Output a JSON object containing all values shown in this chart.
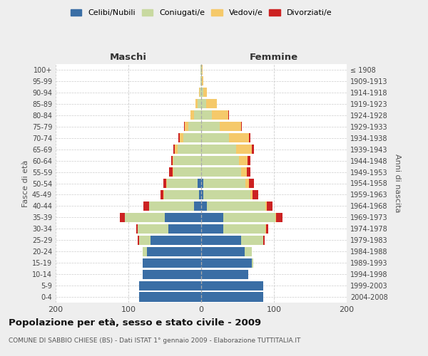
{
  "age_groups": [
    "0-4",
    "5-9",
    "10-14",
    "15-19",
    "20-24",
    "25-29",
    "30-34",
    "35-39",
    "40-44",
    "45-49",
    "50-54",
    "55-59",
    "60-64",
    "65-69",
    "70-74",
    "75-79",
    "80-84",
    "85-89",
    "90-94",
    "95-99",
    "100+"
  ],
  "birth_years": [
    "2004-2008",
    "1999-2003",
    "1994-1998",
    "1989-1993",
    "1984-1988",
    "1979-1983",
    "1974-1978",
    "1969-1973",
    "1964-1968",
    "1959-1963",
    "1954-1958",
    "1949-1953",
    "1944-1948",
    "1939-1943",
    "1934-1938",
    "1929-1933",
    "1924-1928",
    "1919-1923",
    "1914-1918",
    "1909-1913",
    "≤ 1908"
  ],
  "male": {
    "celibe": [
      85,
      85,
      80,
      80,
      75,
      70,
      45,
      50,
      10,
      3,
      5,
      0,
      0,
      0,
      0,
      0,
      0,
      0,
      0,
      0,
      0
    ],
    "coniugato": [
      0,
      0,
      0,
      0,
      5,
      15,
      42,
      55,
      62,
      48,
      42,
      38,
      38,
      32,
      25,
      18,
      10,
      5,
      2,
      1,
      1
    ],
    "vedovo": [
      0,
      0,
      0,
      0,
      0,
      0,
      0,
      0,
      0,
      1,
      1,
      1,
      1,
      4,
      4,
      5,
      5,
      3,
      1,
      0,
      0
    ],
    "divorziato": [
      0,
      0,
      0,
      0,
      0,
      2,
      2,
      7,
      7,
      4,
      4,
      5,
      2,
      2,
      2,
      1,
      0,
      0,
      0,
      0,
      0
    ]
  },
  "female": {
    "nubile": [
      85,
      85,
      65,
      70,
      60,
      55,
      30,
      30,
      8,
      3,
      3,
      0,
      0,
      0,
      0,
      0,
      0,
      0,
      0,
      0,
      0
    ],
    "coniugata": [
      0,
      0,
      0,
      2,
      10,
      30,
      58,
      72,
      80,
      65,
      58,
      55,
      52,
      48,
      38,
      25,
      15,
      7,
      3,
      1,
      1
    ],
    "vedova": [
      0,
      0,
      0,
      0,
      0,
      0,
      1,
      1,
      2,
      3,
      5,
      8,
      12,
      22,
      28,
      30,
      22,
      15,
      5,
      2,
      1
    ],
    "divorziata": [
      0,
      0,
      0,
      0,
      0,
      2,
      3,
      9,
      8,
      7,
      7,
      5,
      4,
      3,
      2,
      1,
      1,
      0,
      0,
      0,
      0
    ]
  },
  "colors": {
    "celibe": "#3A6EA5",
    "coniugato": "#C8D9A0",
    "vedovo": "#F5C96A",
    "divorziato": "#CC2222"
  },
  "legend_labels": [
    "Celibi/Nubili",
    "Coniugati/e",
    "Vedovi/e",
    "Divorziati/e"
  ],
  "title": "Popolazione per età, sesso e stato civile - 2009",
  "subtitle": "COMUNE DI SABBIO CHIESE (BS) - Dati ISTAT 1° gennaio 2009 - Elaborazione TUTTITALIA.IT",
  "xlabel_left": "Maschi",
  "xlabel_right": "Femmine",
  "ylabel_left": "Fasce di età",
  "ylabel_right": "Anni di nascita",
  "xlim": 200,
  "bg_color": "#eeeeee",
  "plot_bg": "#ffffff"
}
